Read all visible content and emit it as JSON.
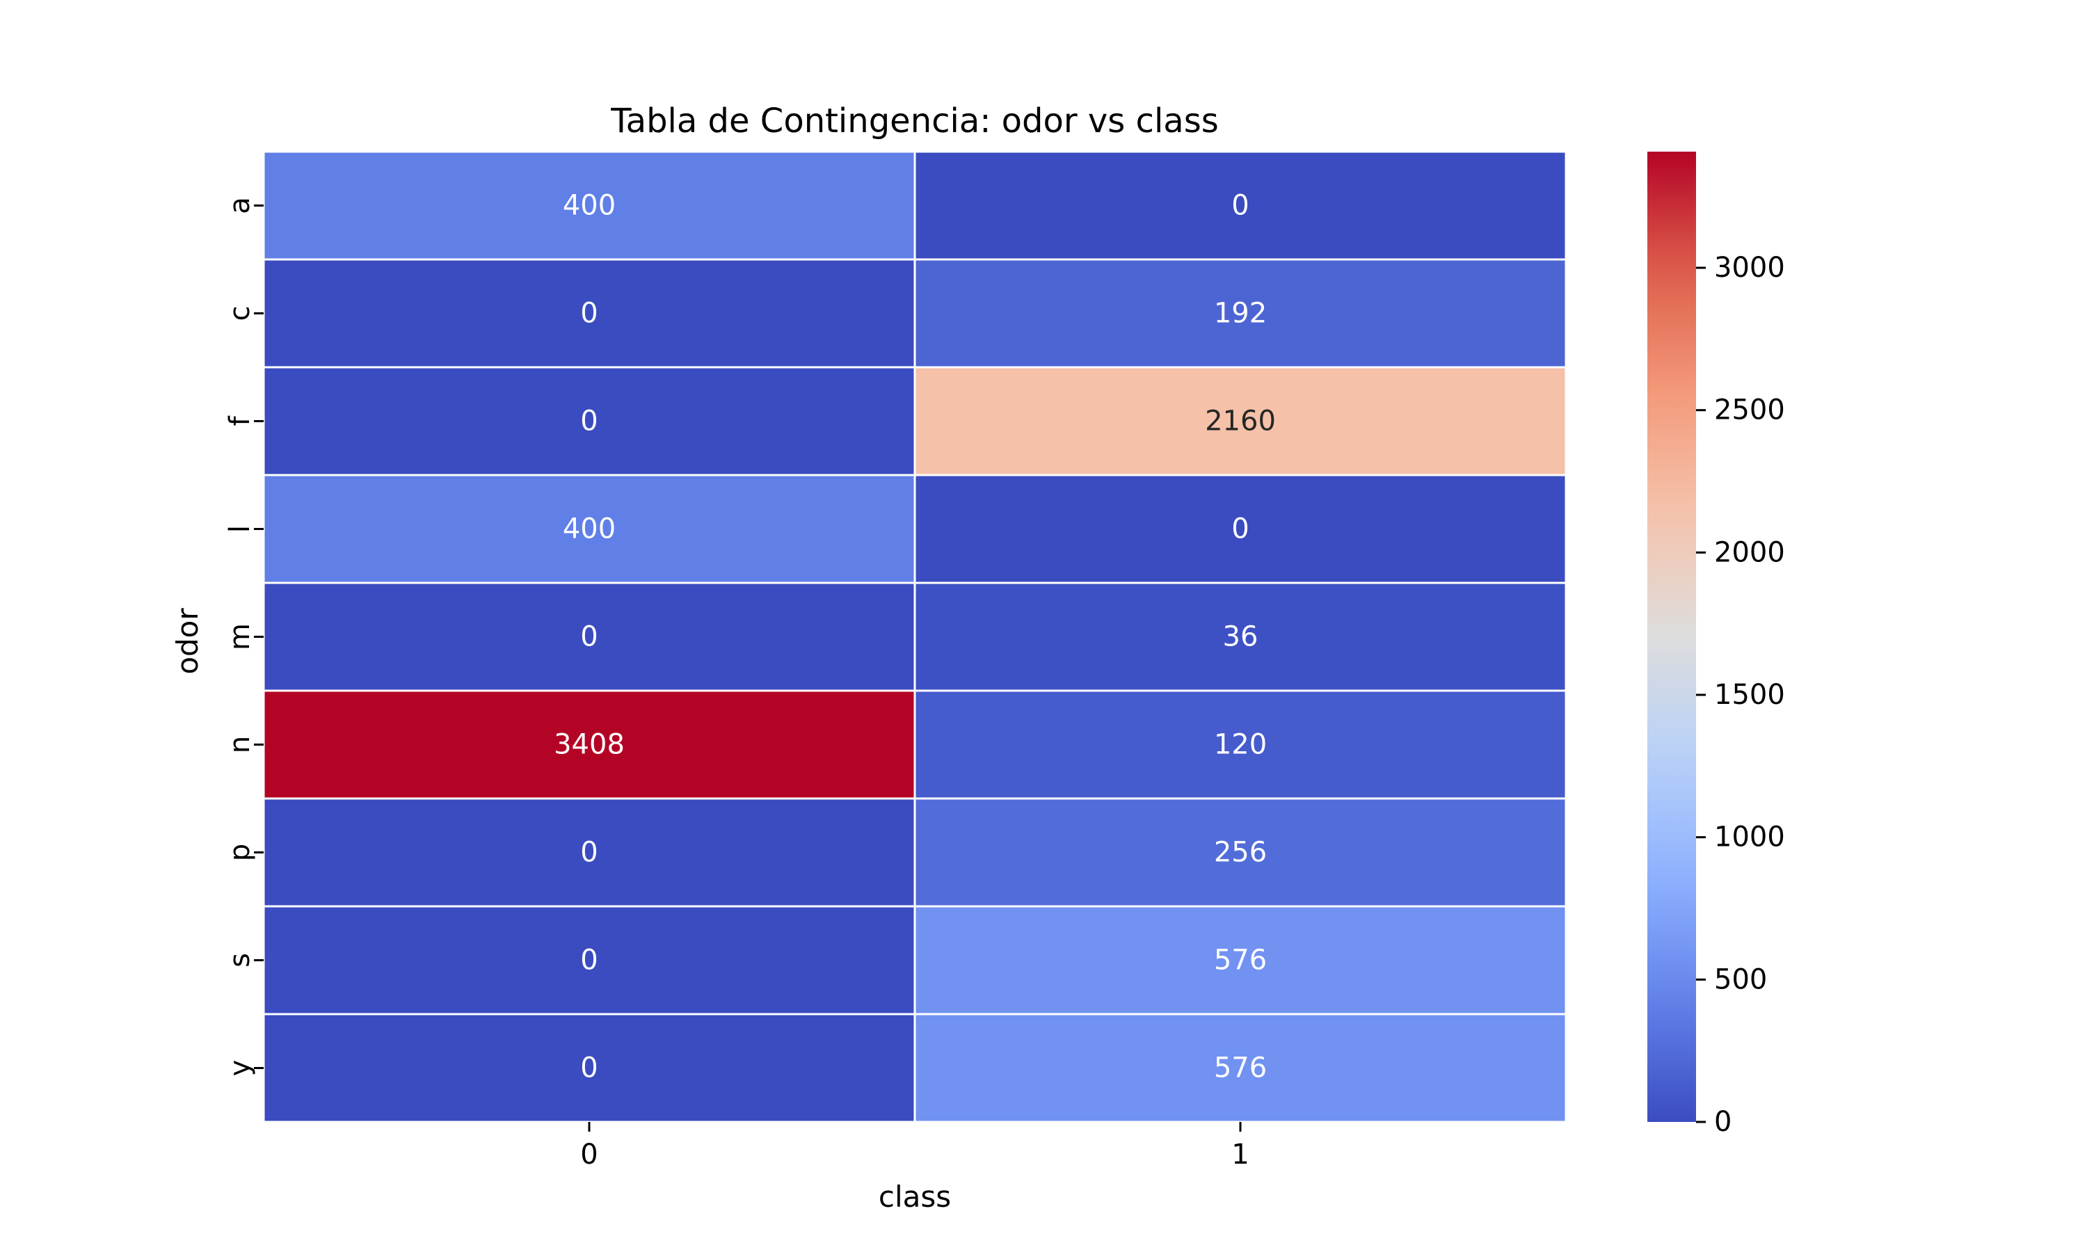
{
  "chart_data": {
    "type": "heatmap",
    "title": "Tabla de Contingencia: odor vs class",
    "xlabel": "class",
    "ylabel": "odor",
    "x_categories": [
      "0",
      "1"
    ],
    "y_categories": [
      "a",
      "c",
      "f",
      "l",
      "m",
      "n",
      "p",
      "s",
      "y"
    ],
    "values": [
      [
        400,
        0
      ],
      [
        0,
        192
      ],
      [
        0,
        2160
      ],
      [
        400,
        0
      ],
      [
        0,
        36
      ],
      [
        3408,
        120
      ],
      [
        0,
        256
      ],
      [
        0,
        576
      ],
      [
        0,
        576
      ]
    ],
    "colormap": "coolwarm",
    "color_range": [
      0,
      3408
    ],
    "colorbar_ticks": [
      0,
      500,
      1000,
      1500,
      2000,
      2500,
      3000
    ],
    "colorbar_tick_labels": [
      "0",
      "500",
      "1000",
      "1500",
      "2000",
      "2500",
      "3000"
    ],
    "cell_line_color": "#ffffff",
    "legend_placement": "right"
  }
}
